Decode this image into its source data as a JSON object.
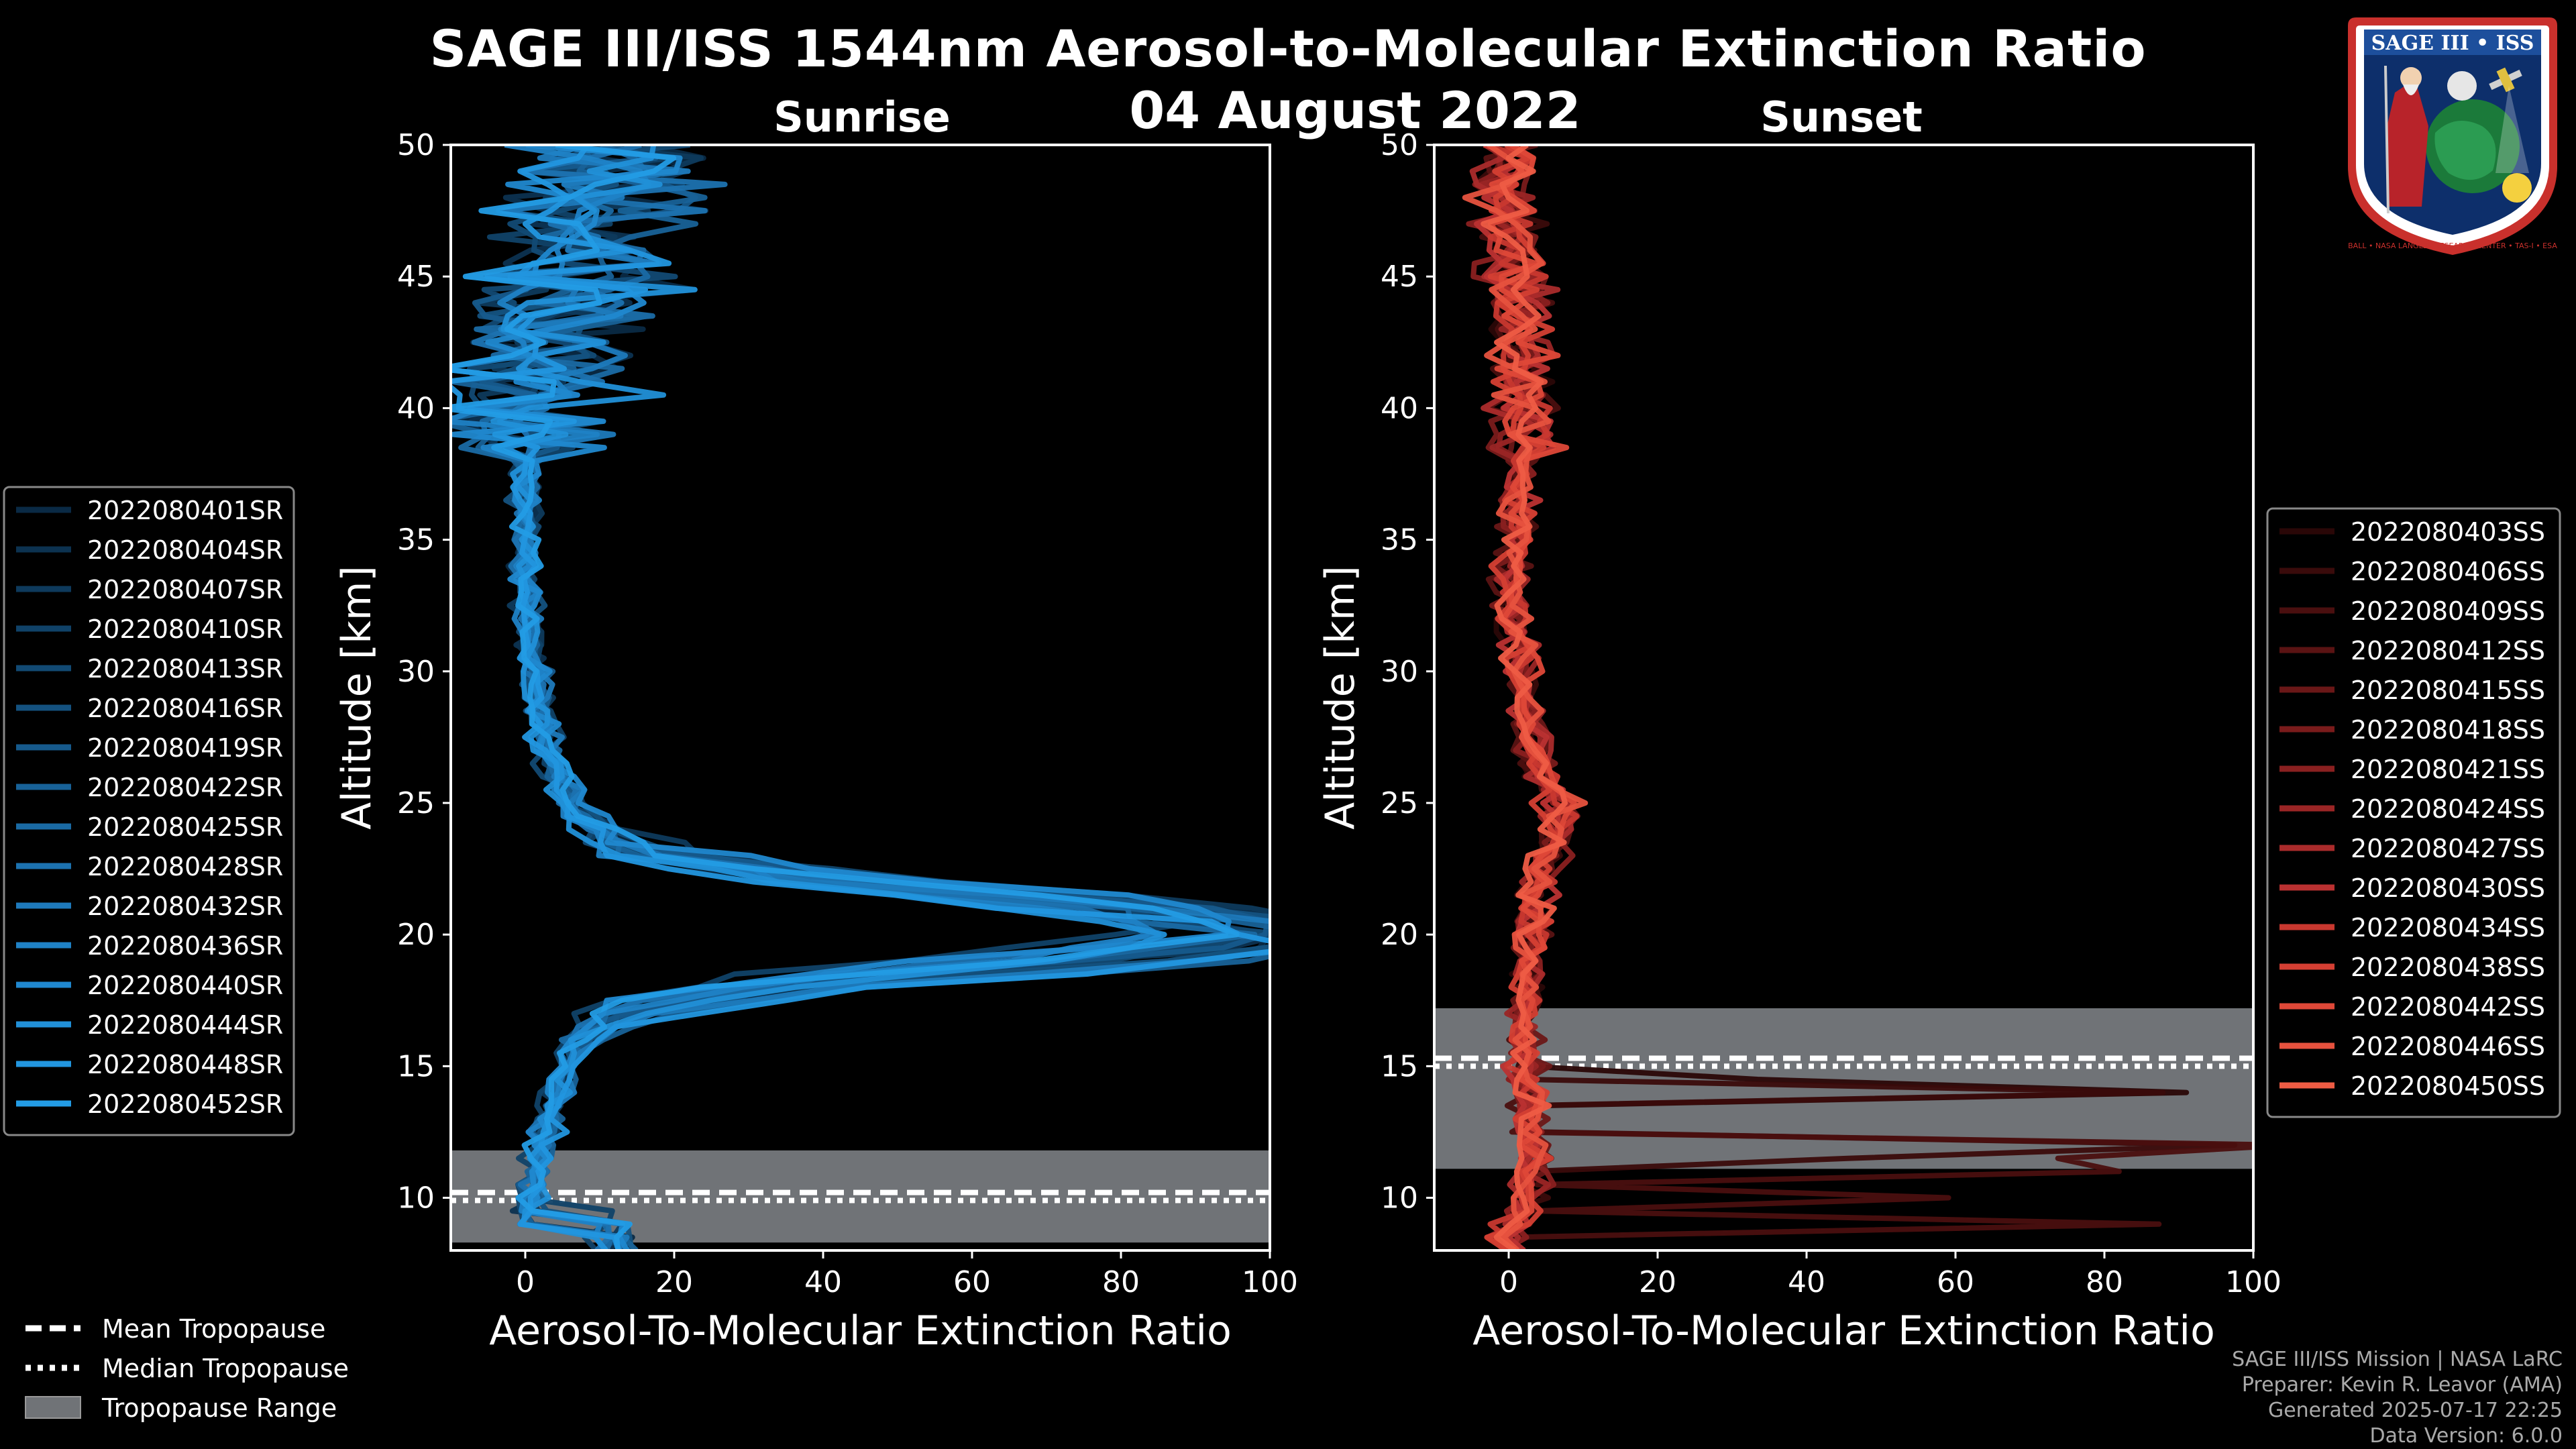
{
  "title": "SAGE III/ISS 1544nm Aerosol-to-Molecular Extinction Ratio",
  "date": "04 August 2022",
  "chart_data": [
    {
      "type": "line",
      "panel": "Sunrise",
      "xlabel": "Aerosol-To-Molecular Extinction Ratio",
      "ylabel": "Altitude [km]",
      "xlim": [
        -10,
        100
      ],
      "ylim": [
        8,
        50
      ],
      "xticks": [
        0,
        20,
        40,
        60,
        80,
        100
      ],
      "yticks": [
        10,
        15,
        20,
        25,
        30,
        35,
        40,
        45,
        50
      ],
      "legend_placement": "left",
      "series_names": [
        "2022080401SR",
        "2022080404SR",
        "2022080407SR",
        "2022080410SR",
        "2022080413SR",
        "2022080416SR",
        "2022080419SR",
        "2022080422SR",
        "2022080425SR",
        "2022080428SR",
        "2022080432SR",
        "2022080436SR",
        "2022080440SR",
        "2022080444SR",
        "2022080448SR",
        "2022080452SR"
      ],
      "series_colors": [
        "#0a2a45",
        "#0c3250",
        "#0e3a5c",
        "#104268",
        "#124a74",
        "#145280",
        "#165a8c",
        "#186298",
        "#1a6aa4",
        "#1c72b0",
        "#1e7abc",
        "#1f82c6",
        "#2088cf",
        "#2190d8",
        "#2296df",
        "#239ce5"
      ],
      "mean_profile": [
        [
          0,
          9
        ],
        [
          1,
          10
        ],
        [
          2,
          12
        ],
        [
          4,
          14
        ],
        [
          6,
          15.5
        ],
        [
          12,
          17
        ],
        [
          40,
          18.2
        ],
        [
          85,
          19.2
        ],
        [
          100,
          20
        ],
        [
          80,
          21
        ],
        [
          40,
          22
        ],
        [
          15,
          23
        ],
        [
          7,
          24.5
        ],
        [
          4,
          26
        ],
        [
          2,
          28
        ],
        [
          1,
          30
        ],
        [
          0,
          33
        ],
        [
          0,
          36
        ],
        [
          0,
          38
        ],
        [
          1,
          40
        ],
        [
          3,
          42
        ],
        [
          5,
          44
        ],
        [
          8,
          46
        ],
        [
          10,
          48
        ],
        [
          12,
          50
        ]
      ],
      "tropopause": {
        "mean": 10.2,
        "median": 9.9,
        "range": [
          8.3,
          11.8
        ]
      }
    },
    {
      "type": "line",
      "panel": "Sunset",
      "xlabel": "Aerosol-To-Molecular Extinction Ratio",
      "ylabel": "Altitude [km]",
      "xlim": [
        -10,
        100
      ],
      "ylim": [
        8,
        50
      ],
      "xticks": [
        0,
        20,
        40,
        60,
        80,
        100
      ],
      "yticks": [
        10,
        15,
        20,
        25,
        30,
        35,
        40,
        45,
        50
      ],
      "legend_placement": "right",
      "series_names": [
        "2022080403SS",
        "2022080406SS",
        "2022080409SS",
        "2022080412SS",
        "2022080415SS",
        "2022080418SS",
        "2022080421SS",
        "2022080424SS",
        "2022080427SS",
        "2022080430SS",
        "2022080434SS",
        "2022080438SS",
        "2022080442SS",
        "2022080446SS",
        "2022080450SS"
      ],
      "series_colors": [
        "#2a0707",
        "#3a0b0b",
        "#4a0f0f",
        "#5a1313",
        "#6a1717",
        "#7a1b1b",
        "#8a2020",
        "#9a2525",
        "#aa2b2b",
        "#ba3131",
        "#c8382f",
        "#d43f33",
        "#de4838",
        "#e6523e",
        "#ee5c44"
      ],
      "mean_profile": [
        [
          2,
          9
        ],
        [
          3,
          11
        ],
        [
          3,
          13
        ],
        [
          2,
          15
        ],
        [
          2,
          17
        ],
        [
          3,
          19
        ],
        [
          3,
          21
        ],
        [
          5,
          23
        ],
        [
          8,
          24.5
        ],
        [
          5,
          25.5
        ],
        [
          3,
          27
        ],
        [
          2,
          29
        ],
        [
          1,
          31
        ],
        [
          0,
          33
        ],
        [
          1,
          35
        ],
        [
          1,
          37
        ],
        [
          2,
          39
        ],
        [
          2,
          41
        ],
        [
          1,
          43
        ],
        [
          1,
          45
        ],
        [
          0,
          47
        ],
        [
          0,
          49
        ],
        [
          0,
          50
        ]
      ],
      "tropopause": {
        "mean": 15.3,
        "median": 15.0,
        "range": [
          11.1,
          17.2
        ]
      }
    }
  ],
  "legend_tropopause": {
    "mean": "Mean Tropopause",
    "median": "Median Tropopause",
    "range": "Tropopause Range"
  },
  "credits": {
    "line1": "SAGE III/ISS Mission | NASA LaRC",
    "line2": "Preparer: Kevin R. Leavor (AMA)",
    "line3": "Generated 2025-07-17 22:25",
    "line4": "Data Version: 6.0.0"
  },
  "badge": {
    "top_text": "SAGE III • ISS",
    "ring_text": "BALL • NASA LANGLEY RESEARCH CENTER • TAS-I • ESA"
  },
  "colors": {
    "sunrise": "#1f8fd6",
    "sunset": "#e0503c",
    "tropopause_band": "#707377"
  }
}
